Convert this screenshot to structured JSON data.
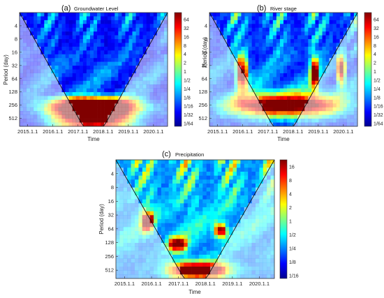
{
  "chart_data": [
    {
      "type": "heatmap",
      "panel_label": "(a)",
      "title": "Groundwater Level",
      "xlabel": "Time",
      "ylabel": "Period (day)",
      "x_ticks": [
        "2015.1.1",
        "2016.1.1",
        "2017.1.1",
        "2018.1.1",
        "2019.1.1",
        "2020.1.1"
      ],
      "y_ticks": [
        "4",
        "8",
        "16",
        "32",
        "64",
        "128",
        "256",
        "512"
      ],
      "y_scale": "log2",
      "colorbar_ticks": [
        "64",
        "32",
        "16",
        "8",
        "4",
        "2",
        "1",
        "1/2",
        "1/4",
        "1/8",
        "1/16",
        "1/32",
        "1/64"
      ],
      "colormap": "jet",
      "peak_bands": [
        {
          "period_center": 512,
          "period_width": 1.0,
          "time_start": 0.22,
          "time_end": 0.78,
          "power": 0.95
        },
        {
          "period_center": 300,
          "period_width": 0.5,
          "time_start": 0.15,
          "time_end": 0.85,
          "power": 0.7
        },
        {
          "period_center": 200,
          "period_width": 0.4,
          "time_start": 0.18,
          "time_end": 0.82,
          "power": 0.5
        }
      ],
      "high_freq_power": 0.35,
      "low_background": 0.12
    },
    {
      "type": "heatmap",
      "panel_label": "(b)",
      "title": "River stage",
      "xlabel": "Time",
      "ylabel": "Period (day)",
      "x_ticks": [
        "2015.1.1",
        "2016.1.1",
        "2017.1.1",
        "2018.1.1",
        "2019.1.1",
        "2020.1.1"
      ],
      "y_ticks": [
        "4",
        "8",
        "16",
        "32",
        "64",
        "128",
        "256",
        "512"
      ],
      "y_scale": "log2",
      "colorbar_ticks": [
        "64",
        "32",
        "16",
        "8",
        "4",
        "2",
        "1",
        "1/2",
        "1/4",
        "1/8",
        "1/16",
        "1/32",
        "1/64"
      ],
      "colormap": "jet",
      "peak_bands": [
        {
          "period_center": 256,
          "period_width": 0.9,
          "time_start": 0.12,
          "time_end": 0.9,
          "power": 0.95
        },
        {
          "period_center": 48,
          "period_width": 1.2,
          "time_start": 0.18,
          "time_end": 0.26,
          "power": 0.9
        },
        {
          "period_center": 48,
          "period_width": 1.2,
          "time_start": 0.68,
          "time_end": 0.74,
          "power": 0.85
        },
        {
          "period_center": 40,
          "period_width": 1.1,
          "time_start": 0.86,
          "time_end": 0.92,
          "power": 0.85
        }
      ],
      "high_freq_power": 0.45,
      "low_background": 0.15
    },
    {
      "type": "heatmap",
      "panel_label": "(c)",
      "title": "Precipitation",
      "xlabel": "Time",
      "ylabel": "Period (day)",
      "x_ticks": [
        "2015.1.1",
        "2016.1.1",
        "2017.1.1",
        "2018.1.1",
        "2019.1.1",
        "2020.1.1"
      ],
      "y_ticks": [
        "4",
        "8",
        "16",
        "32",
        "64",
        "128",
        "256",
        "512"
      ],
      "y_scale": "log2",
      "colorbar_ticks": [
        "16",
        "8",
        "4",
        "2",
        "1",
        "1/2",
        "1/4",
        "1/8",
        "1/16"
      ],
      "colormap": "jet",
      "peak_bands": [
        {
          "period_center": 512,
          "period_width": 0.6,
          "time_start": 0.33,
          "time_end": 0.72,
          "power": 0.95
        },
        {
          "period_center": 140,
          "period_width": 0.5,
          "time_start": 0.33,
          "time_end": 0.45,
          "power": 0.8
        },
        {
          "period_center": 45,
          "period_width": 0.7,
          "time_start": 0.16,
          "time_end": 0.24,
          "power": 0.8
        },
        {
          "period_center": 70,
          "period_width": 0.5,
          "time_start": 0.62,
          "time_end": 0.7,
          "power": 0.75
        }
      ],
      "high_freq_power": 0.55,
      "low_background": 0.25
    }
  ]
}
